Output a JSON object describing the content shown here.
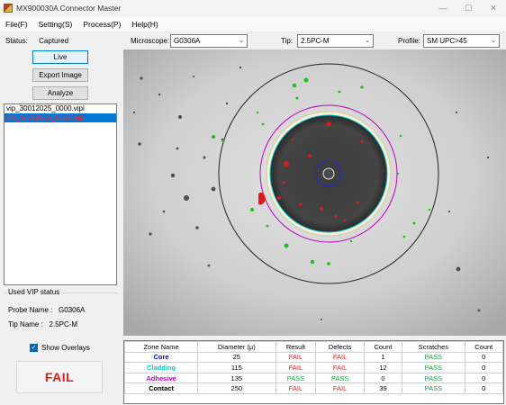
{
  "window": {
    "title": "MX900030A Connector Master",
    "minimize": "—",
    "maximize": "☐",
    "close": "✕"
  },
  "menu": [
    "File(F)",
    "Setting(S)",
    "Process(P)",
    "Help(H)"
  ],
  "left": {
    "status_label": "Status:",
    "status_value": "Captured",
    "live_button": "Live",
    "export_button": "Export Image",
    "analyze_button": "Analyze",
    "files": [
      "vip_30012025_0000.vipi",
      "vip_30012025_0001.vipi"
    ],
    "selected_file_index": 1,
    "vip_status_title": "Used VIP status",
    "probe_label": "Probe Name :",
    "probe_value": "G0306A",
    "tip_label": "Tip  Name :",
    "tip_value": "2.5PC-M",
    "show_overlays_label": "Show Overlays",
    "show_overlays_checked": true,
    "verdict": "FAIL"
  },
  "toolbar": {
    "microscope_label": "Microscope:",
    "microscope_value": "G0306A",
    "tip_label": "Tip:",
    "tip_value": "2.5PC-M",
    "profile_label": "Profile:",
    "profile_value": "SM UPC>45"
  },
  "colors": {
    "core": "#0000c8",
    "cladding": "#00c8c8",
    "adhesive": "#c000c0",
    "contact": "#000000",
    "pass": "#1aa34a",
    "fail": "#e02020"
  },
  "results": {
    "headers": [
      "Zone Name",
      "Diameter (µ)",
      "Result",
      "Defects",
      "Count",
      "Scratches",
      "Count"
    ],
    "rows": [
      {
        "zone": "Core",
        "diameter": "25",
        "result": "FAIL",
        "defects": "FAIL",
        "count": "1",
        "scratches": "PASS",
        "scount": "0"
      },
      {
        "zone": "Cladding",
        "diameter": "115",
        "result": "FAIL",
        "defects": "FAIL",
        "count": "12",
        "scratches": "PASS",
        "scount": "0"
      },
      {
        "zone": "Adhesive",
        "diameter": "135",
        "result": "PASS",
        "defects": "PASS",
        "count": "0",
        "scratches": "PASS",
        "scount": "0"
      },
      {
        "zone": "Contact",
        "diameter": "250",
        "result": "FAIL",
        "defects": "FAIL",
        "count": "39",
        "scratches": "PASS",
        "scount": "0"
      }
    ]
  }
}
